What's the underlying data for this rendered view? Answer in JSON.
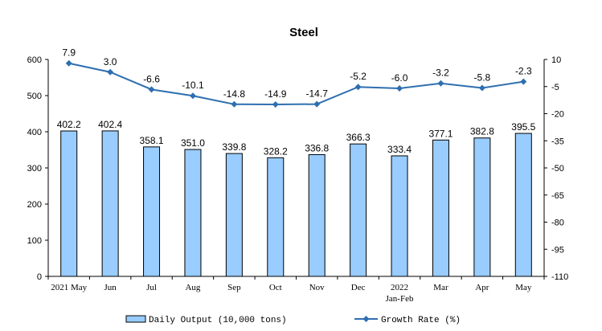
{
  "chart_data": {
    "type": "bar",
    "title": "Steel",
    "categories": [
      [
        "2021 May"
      ],
      [
        "Jun"
      ],
      [
        "Jul"
      ],
      [
        "Aug"
      ],
      [
        "Sep"
      ],
      [
        "Oct"
      ],
      [
        "Nov"
      ],
      [
        "Dec"
      ],
      [
        "2022",
        "Jan-Feb"
      ],
      [
        "Mar"
      ],
      [
        "Apr"
      ],
      [
        "May"
      ]
    ],
    "series": [
      {
        "name": "Daily Output (10,000 tons)",
        "type": "bar",
        "axis": "left",
        "color": "#99CCFF",
        "values": [
          402.2,
          402.4,
          358.1,
          351.0,
          339.8,
          328.2,
          336.8,
          366.3,
          333.4,
          377.1,
          382.8,
          395.5
        ],
        "labels": [
          "402.2",
          "402.4",
          "358.1",
          "351.0",
          "339.8",
          "328.2",
          "336.8",
          "366.3",
          "333.4",
          "377.1",
          "382.8",
          "395.5"
        ]
      },
      {
        "name": "Growth Rate (%)",
        "type": "line",
        "axis": "right",
        "color": "#2E6FB0",
        "values": [
          7.9,
          3.0,
          -6.6,
          -10.1,
          -14.8,
          -14.9,
          -14.7,
          -5.2,
          -6.0,
          -3.2,
          -5.8,
          -2.3
        ],
        "labels": [
          "7.9",
          "3.0",
          "-6.6",
          "-10.1",
          "-14.8",
          "-14.9",
          "-14.7",
          "-5.2",
          "-6.0",
          "-3.2",
          "-5.8",
          "-2.3"
        ]
      }
    ],
    "left_axis": {
      "ylim": [
        0,
        600
      ],
      "ticks": [
        0,
        100,
        200,
        300,
        400,
        500,
        600
      ],
      "tick_labels": [
        "0",
        "100",
        "200",
        "300",
        "400",
        "500",
        "600"
      ]
    },
    "right_axis": {
      "ticks": [
        -110,
        -95,
        -80,
        -65,
        -50,
        -35,
        -20,
        -5,
        10
      ],
      "tick_labels": [
        "-110",
        "-95",
        "-80",
        "-65",
        "-50",
        "-35",
        "-20",
        "-5",
        "10"
      ]
    },
    "grid": false,
    "legend_position": "bottom"
  }
}
